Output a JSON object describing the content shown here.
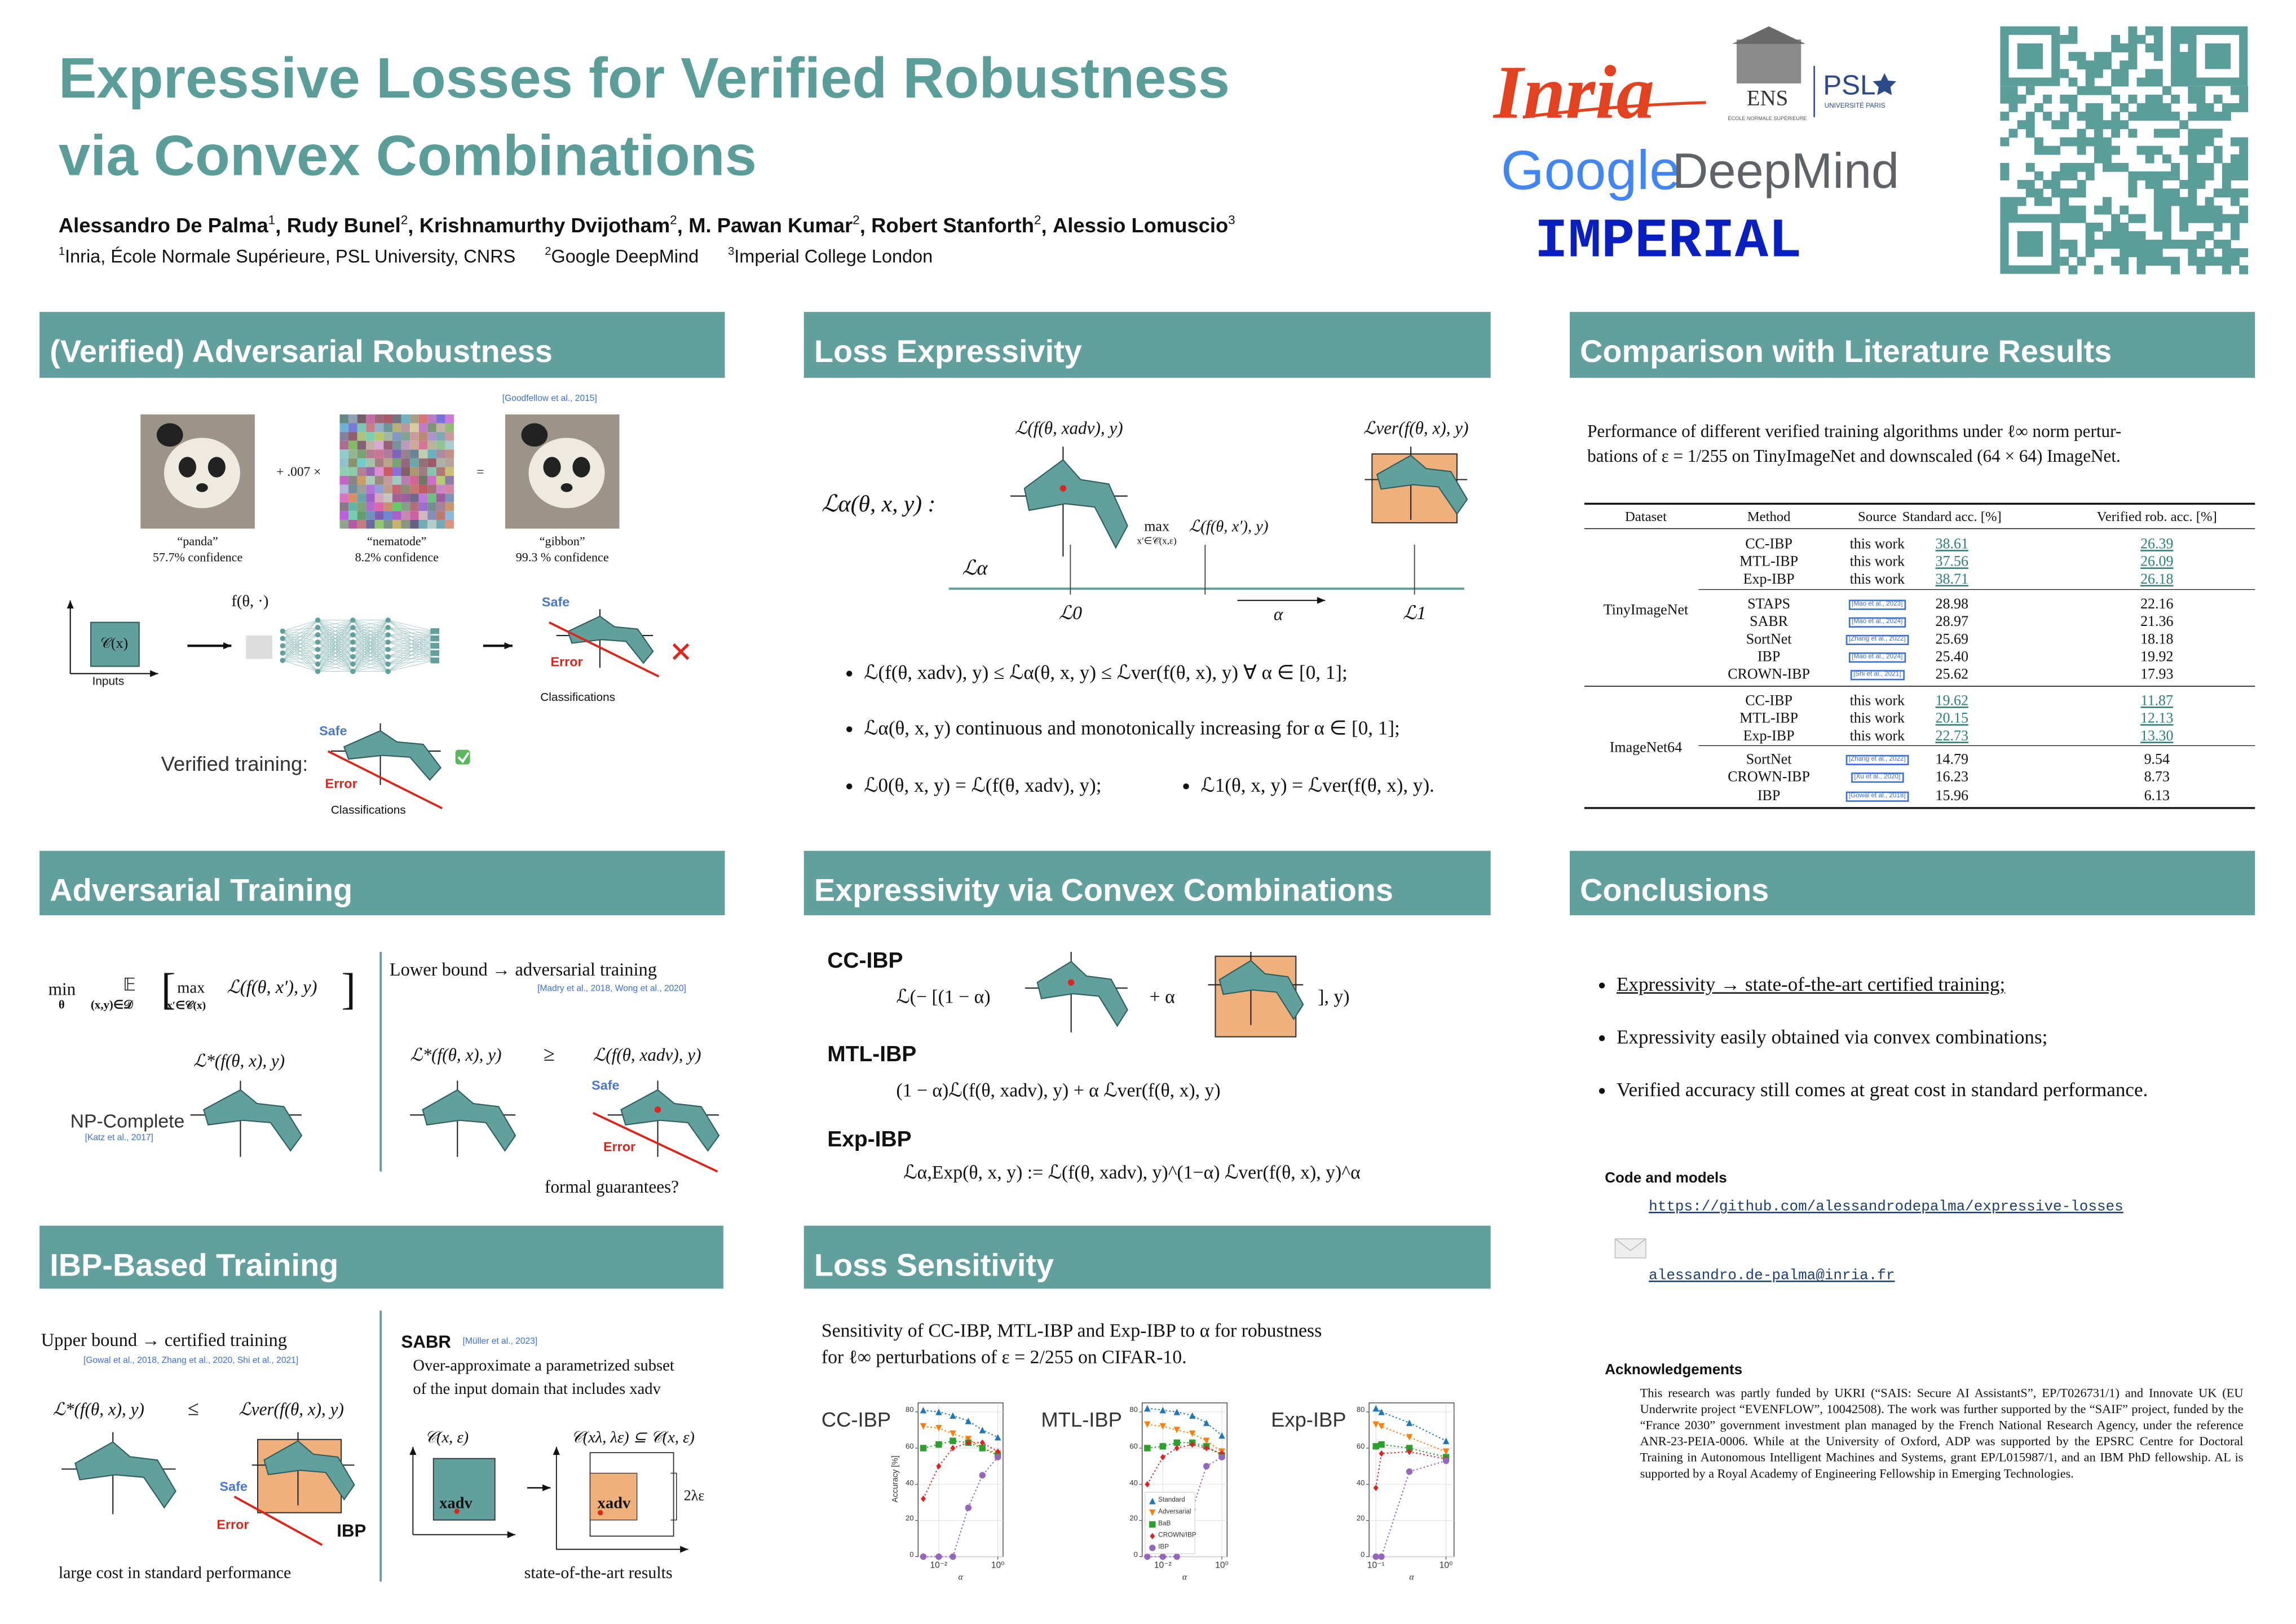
{
  "header": {
    "title": [
      "Expressive Losses for Verified Robustness",
      "via Convex Combinations"
    ],
    "authors": [
      {
        "name": "Alessandro De Palma",
        "aff": "1",
        "sep": ","
      },
      {
        "name": "Rudy Bunel",
        "aff": "2",
        "sep": ","
      },
      {
        "name": "Krishnamurthy Dvijotham",
        "aff": "2",
        "sep": ","
      },
      {
        "name": "M. Pawan Kumar",
        "aff": "2",
        "sep": ","
      },
      {
        "name": "Robert Stanforth",
        "aff": "2",
        "sep": ","
      },
      {
        "name": "Alessio Lomuscio",
        "aff": "3"
      }
    ],
    "affiliations": [
      {
        "num": "1",
        "text": "Inria, École Normale Supérieure, PSL University, CNRS"
      },
      {
        "num": "2",
        "text": "Google DeepMind"
      },
      {
        "num": "3",
        "text": "Imperial College London"
      }
    ],
    "logos": {
      "inria": "Inria",
      "ens": "ENS",
      "ens_sub": "ÉCOLE NORMALE SUPÉRIEURE",
      "psl": "PSL",
      "psl_sub": "UNIVERSITÉ PARIS",
      "google": "Google",
      "deepmind": "DeepMind",
      "imperial": "IMPERIAL"
    }
  },
  "robustness": {
    "title": "(Verified) Adversarial Robustness",
    "cite": "[Goodfellow et al., 2015]",
    "plus": "+ .007 ×",
    "eq": "=",
    "images": [
      {
        "label": "“panda”",
        "conf": "57.7% confidence"
      },
      {
        "label": "“nematode”",
        "conf": "8.2% confidence"
      },
      {
        "label": "“gibbon”",
        "conf": "99.3 % confidence"
      }
    ],
    "input_set": "𝒞(x)",
    "inputs": "Inputs",
    "f": "f(θ, ·)",
    "safe": "Safe",
    "error": "Error",
    "classifications": "Classifications",
    "verified": "Verified training:"
  },
  "expressivity": {
    "title": "Loss Expressivity",
    "la": "ℒα(θ, x, y) :",
    "ladv": "ℒ(f(θ, xadv), y)",
    "lver": "ℒver(f(θ, x), y)",
    "max": "max",
    "max_sub": "x′∈𝒞(x,ε)",
    "max_body": "ℒ(f(θ, x′), y)",
    "axis": "ℒα",
    "l0": "ℒ0",
    "l1": "ℒ1",
    "alpha": "α",
    "bullets": [
      "ℒ(f(θ, xadv), y) ≤ ℒα(θ, x, y) ≤ ℒver(f(θ, x), y) ∀ α ∈ [0, 1];",
      "ℒα(θ, x, y) continuous and monotonically increasing for α ∈ [0, 1];",
      "ℒ0(θ, x, y) = ℒ(f(θ, xadv), y);",
      "ℒ1(θ, x, y) = ℒver(f(θ, x), y)."
    ]
  },
  "comparison": {
    "title": "Comparison with Literature Results",
    "intro": [
      "Performance of different verified training algorithms under ℓ∞ norm pertur-",
      "bations of ε = 1/255 on TinyImageNet and downscaled (64 × 64) ImageNet."
    ],
    "headers": [
      "Dataset",
      "Method",
      "Source",
      "Standard acc. [%]",
      "Verified rob. acc. [%]"
    ],
    "groups": [
      {
        "dataset": "TinyImageNet",
        "blocks": [
          [
            {
              "method": "CC-IBP",
              "source": "this work",
              "std": "38.61",
              "ver": "26.39",
              "underline": true
            },
            {
              "method": "MTL-IBP",
              "source": "this work",
              "std": "37.56",
              "ver": "26.09",
              "underline": true
            },
            {
              "method": "Exp-IBP",
              "source": "this work",
              "std": "38.71",
              "ver": "26.18",
              "underline": true
            }
          ],
          [
            {
              "method": "STAPS",
              "source": "[Mao et al., 2023]",
              "std": "28.98",
              "ver": "22.16"
            },
            {
              "method": "SABR",
              "source": "[Mao et al., 2024]",
              "std": "28.97",
              "ver": "21.36"
            },
            {
              "method": "SortNet",
              "source": "[Zhang et al., 2022]",
              "std": "25.69",
              "ver": "18.18"
            },
            {
              "method": "IBP",
              "source": "[Mao et al., 2024]",
              "std": "25.40",
              "ver": "19.92"
            },
            {
              "method": "CROWN-IBP",
              "source": "[Shi et al., 2021]",
              "std": "25.62",
              "ver": "17.93"
            }
          ]
        ]
      },
      {
        "dataset": "ImageNet64",
        "blocks": [
          [
            {
              "method": "CC-IBP",
              "source": "this work",
              "std": "19.62",
              "ver": "11.87",
              "underline": true
            },
            {
              "method": "MTL-IBP",
              "source": "this work",
              "std": "20.15",
              "ver": "12.13",
              "underline": true
            },
            {
              "method": "Exp-IBP",
              "source": "this work",
              "std": "22.73",
              "ver": "13.30",
              "underline": true
            }
          ],
          [
            {
              "method": "SortNet",
              "source": "[Zhang et al., 2022]",
              "std": "14.79",
              "ver": "9.54"
            },
            {
              "method": "CROWN-IBP",
              "source": "[Xu et al., 2020]",
              "std": "16.23",
              "ver": "8.73"
            },
            {
              "method": "IBP",
              "source": "[Gowal et al., 2018]",
              "std": "15.96",
              "ver": "6.13"
            }
          ]
        ]
      }
    ]
  },
  "adversarial": {
    "title": "Adversarial Training",
    "min": "min",
    "min_sub": "θ",
    "exp": "𝔼",
    "exp_sub": "(x,y)∈𝒟",
    "lbr": "[",
    "max": "max",
    "max_sub": "x′∈𝒞(x)",
    "body": "ℒ(f(θ, x′), y)",
    "rbr": "]",
    "lstar": "ℒ*(f(θ, x), y)",
    "np": "NP-Complete",
    "np_cite": "[Katz et al., 2017]",
    "lower": "Lower bound → adversarial training",
    "lower_cite": "[Madry et al., 2018, Wong et al., 2020]",
    "geq": "≥",
    "ladv": "ℒ(f(θ, xadv), y)",
    "safe": "Safe",
    "error": "Error",
    "question": "formal guarantees?"
  },
  "convex": {
    "title": "Expressivity via Convex Combinations",
    "cc": "CC-IBP",
    "cc_left": "ℒ(− [(1 − α)",
    "cc_mid": "+ α",
    "cc_right": "], y)",
    "mtl": "MTL-IBP",
    "mtl_eq": "(1 − α)ℒ(f(θ, xadv), y) + α ℒver(f(θ, x), y)",
    "exp": "Exp-IBP",
    "exp_eq": "ℒα,Exp(θ, x, y) := ℒ(f(θ, xadv), y)^(1−α) ℒver(f(θ, x), y)^α"
  },
  "conclusions": {
    "title": "Conclusions",
    "bullets": [
      {
        "text": "Expressivity → state-of-the-art certified training;",
        "underline": true
      },
      {
        "text": "Expressivity easily obtained via convex combinations;"
      },
      {
        "text": "Verified accuracy still comes at great cost in standard performance."
      }
    ],
    "code_title": "Code and models",
    "url": "https://github.com/alessandrodepalma/expressive-losses",
    "email": "alessandro.de-palma@inria.fr",
    "ack_title": "Acknowledgements",
    "ack": "This research was partly funded by UKRI (“SAIS: Secure AI AssistantS”, EP/T026731/1) and Innovate UK (EU Underwrite project “EVENFLOW”, 10042508). The work was further supported by the “SAIF” project, funded by the “France 2030” government investment plan managed by the French National Research Agency, under the reference ANR-23-PEIA-0006. While at the University of Oxford, ADP was supported by the EPSRC Centre for Doctoral Training in Autonomous Intelligent Machines and Systems, grant EP/L015987/1, and an IBM PhD fellowship. AL is supported by a Royal Academy of Engineering Fellowship in Emerging Technologies."
  },
  "ibp": {
    "title": "IBP-Based Training",
    "upper": "Upper bound → certified training",
    "upper_cite": "[Gowal et al., 2018, Zhang et al., 2020, Shi et al., 2021]",
    "lstar": "ℒ*(f(θ, x), y)",
    "leq": "≤",
    "lver": "ℒver(f(θ, x), y)",
    "safe": "Safe",
    "error": "Error",
    "ibp": "IBP",
    "cost": "large cost in standard performance",
    "sabr": "SABR",
    "sabr_cite": "[Müller et al., 2023]",
    "sabr_text": [
      "Over-approximate a parametrized subset",
      "of the input domain that includes xadv"
    ],
    "cset": "𝒞(x, ε)",
    "csub": "𝒞(xλ, λε) ⊆ 𝒞(x, ε)",
    "xadv": "xadv",
    "two": "2λε",
    "sota": "state-of-the-art results"
  },
  "sensitivity": {
    "title": "Loss Sensitivity",
    "intro": [
      "Sensitivity of CC-IBP, MTL-IBP and Exp-IBP to α for robustness",
      "for ℓ∞ perturbations of ε = 2/255 on CIFAR-10."
    ],
    "ylabel": "Accuracy [%]",
    "xlabel": "α",
    "series": [
      {
        "name": "Standard",
        "color": "#1f77b4",
        "marker": "triangle-up"
      },
      {
        "name": "Adversarial",
        "color": "#ff7f0e",
        "marker": "triangle-down"
      },
      {
        "name": "BaB",
        "color": "#2ca02c",
        "marker": "square"
      },
      {
        "name": "CROWN/IBP",
        "color": "#d62728",
        "marker": "diamond"
      },
      {
        "name": "IBP",
        "color": "#9467bd",
        "marker": "circle"
      }
    ],
    "charts": [
      {
        "type": "line",
        "label": "CC-IBP",
        "log_x": true,
        "grid": true,
        "legend": false,
        "x": [
          0.003,
          0.01,
          0.03,
          0.1,
          0.3,
          1
        ],
        "xlim": [
          0.002,
          1.5
        ],
        "xticks": [
          {
            "value": 0.01,
            "label": "10⁻²"
          },
          {
            "value": 1,
            "label": "10⁰"
          }
        ],
        "ylim": [
          0,
          85
        ],
        "yticks": [
          0,
          20,
          40,
          60,
          80
        ],
        "values": [
          [
            81,
            80,
            78,
            75,
            70,
            66
          ],
          [
            72,
            71,
            68,
            65,
            60,
            57
          ],
          [
            60,
            62,
            64,
            63,
            60,
            56
          ],
          [
            32,
            50,
            60,
            63,
            63,
            58
          ],
          [
            0,
            0,
            0,
            27,
            45,
            55
          ]
        ]
      },
      {
        "type": "line",
        "label": "MTL-IBP",
        "log_x": true,
        "grid": true,
        "legend": true,
        "x": [
          0.003,
          0.01,
          0.03,
          0.1,
          0.3,
          1
        ],
        "xlim": [
          0.002,
          1.5
        ],
        "xticks": [
          {
            "value": 0.01,
            "label": "10⁻²"
          },
          {
            "value": 1,
            "label": "10⁰"
          }
        ],
        "ylim": [
          0,
          85
        ],
        "yticks": [
          0,
          20,
          40,
          60,
          80
        ],
        "values": [
          [
            82,
            81,
            80,
            78,
            74,
            67
          ],
          [
            73,
            72,
            70,
            68,
            64,
            58
          ],
          [
            60,
            61,
            63,
            63,
            61,
            56
          ],
          [
            40,
            55,
            60,
            62,
            60,
            57
          ],
          [
            0,
            0,
            0,
            26,
            50,
            55
          ]
        ]
      },
      {
        "type": "line",
        "label": "Exp-IBP",
        "log_x": true,
        "grid": true,
        "legend": false,
        "x": [
          0.1,
          0.12,
          0.3,
          1
        ],
        "xlim": [
          0.08,
          1.3
        ],
        "xticks": [
          {
            "value": 0.1,
            "label": "10⁻¹"
          },
          {
            "value": 1,
            "label": "10⁰"
          }
        ],
        "ylim": [
          0,
          85
        ],
        "yticks": [
          0,
          20,
          40,
          60,
          80
        ],
        "values": [
          [
            82,
            80,
            74,
            64
          ],
          [
            73,
            72,
            66,
            58
          ],
          [
            61,
            62,
            60,
            55
          ],
          [
            38,
            57,
            58,
            54
          ],
          [
            0,
            0,
            47,
            53
          ]
        ]
      }
    ]
  }
}
